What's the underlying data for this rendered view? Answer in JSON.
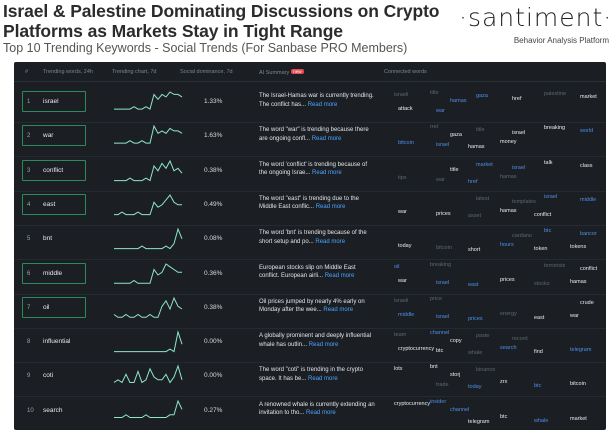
{
  "header": {
    "headline": "Israel & Palestine Dominating Discussions on Crypto Platforms as Markets Stay in Tight Range",
    "subtitle": "Top 10 Trending Keywords - Social Trends (For Sanbase PRO Members)",
    "logo_text": "·santiment·",
    "logo_tagline": "Behavior Analysis Platform"
  },
  "table": {
    "columns": {
      "index": "#",
      "keywords": "Trending words, 24h",
      "chart": "Trending chart, 7d",
      "dominance": "Social dominance, 7d",
      "ai": "AI Summary",
      "ai_badge": "new",
      "connected": "Connected words"
    },
    "read_more": "Read more",
    "rows": [
      {
        "idx": "1",
        "keyword": "israel",
        "dominance": "1.33%",
        "highlighted": true,
        "summary": "The Israel-Hamas war is currently trending. The conflict has...",
        "trend": [
          2,
          2,
          2,
          2,
          2,
          3,
          2,
          2,
          3,
          2,
          8,
          6,
          8,
          7,
          9,
          8,
          8,
          7
        ],
        "words": [
          {
            "t": "israeli",
            "c": "g"
          },
          {
            "t": "title",
            "c": "g"
          },
          {
            "t": "hamas",
            "c": "b"
          },
          {
            "t": "gaza",
            "c": "b"
          },
          {
            "t": "href",
            "c": "w"
          },
          {
            "t": "palestine",
            "c": "g"
          },
          {
            "t": "market",
            "c": "w"
          },
          {
            "t": "attack",
            "c": "w"
          },
          {
            "t": "war",
            "c": "b"
          }
        ]
      },
      {
        "idx": "2",
        "keyword": "war",
        "dominance": "1.63%",
        "highlighted": true,
        "summary": "The word \"war\" is trending because there are ongoing confl...",
        "trend": [
          2,
          2,
          2,
          2,
          3,
          2,
          2,
          3,
          2,
          2,
          9,
          6,
          7,
          6,
          8,
          7,
          7,
          6
        ],
        "words": [
          {
            "t": "rrel",
            "c": "g"
          },
          {
            "t": "gaza",
            "c": "w"
          },
          {
            "t": "title",
            "c": "g"
          },
          {
            "t": "israel",
            "c": "w"
          },
          {
            "t": "breaking",
            "c": "w"
          },
          {
            "t": "world",
            "c": "b"
          },
          {
            "t": "bitcoin",
            "c": "b"
          },
          {
            "t": "israel",
            "c": "b"
          },
          {
            "t": "hamas",
            "c": "w"
          },
          {
            "t": "money",
            "c": "w"
          }
        ]
      },
      {
        "idx": "3",
        "keyword": "conflict",
        "dominance": "0.38%",
        "highlighted": true,
        "summary": "The word 'conflict' is trending because of the ongoing Israe...",
        "trend": [
          1,
          1,
          1,
          1,
          2,
          1,
          1,
          1,
          2,
          1,
          7,
          5,
          8,
          6,
          9,
          5,
          6,
          4
        ],
        "words": [
          {
            "t": "title",
            "c": "w"
          },
          {
            "t": "market",
            "c": "b"
          },
          {
            "t": "israel",
            "c": "b"
          },
          {
            "t": "talk",
            "c": "w"
          },
          {
            "t": "class",
            "c": "w"
          },
          {
            "t": "tips",
            "c": "g"
          },
          {
            "t": "war",
            "c": "g"
          },
          {
            "t": "href",
            "c": "b"
          },
          {
            "t": "hamas",
            "c": "g"
          }
        ]
      },
      {
        "idx": "4",
        "keyword": "east",
        "dominance": "0.49%",
        "highlighted": true,
        "summary": "The word \"east\" is trending due to the Middle East conflic...",
        "trend": [
          1,
          1,
          2,
          1,
          1,
          1,
          2,
          1,
          1,
          1,
          6,
          4,
          5,
          7,
          9,
          6,
          5,
          5
        ],
        "words": [
          {
            "t": "latest",
            "c": "g"
          },
          {
            "t": "templates",
            "c": "g"
          },
          {
            "t": "israel",
            "c": "b"
          },
          {
            "t": "middle",
            "c": "b"
          },
          {
            "t": "war",
            "c": "w"
          },
          {
            "t": "prices",
            "c": "w"
          },
          {
            "t": "asset",
            "c": "g"
          },
          {
            "t": "hamas",
            "c": "w"
          },
          {
            "t": "conflict",
            "c": "w"
          }
        ]
      },
      {
        "idx": "5",
        "keyword": "bnt",
        "dominance": "0.08%",
        "highlighted": false,
        "summary": "The word 'bnt' is trending because of the short setup and po...",
        "trend": [
          1,
          1,
          1,
          1,
          1,
          1,
          1,
          2,
          1,
          1,
          1,
          1,
          1,
          2,
          1,
          3,
          9,
          5
        ],
        "words": [
          {
            "t": "cardano",
            "c": "g"
          },
          {
            "t": "btc",
            "c": "b"
          },
          {
            "t": "bancor",
            "c": "b"
          },
          {
            "t": "today",
            "c": "w"
          },
          {
            "t": "bitcoin",
            "c": "g"
          },
          {
            "t": "short",
            "c": "w"
          },
          {
            "t": "hours",
            "c": "b"
          },
          {
            "t": "token",
            "c": "w"
          },
          {
            "t": "tokens",
            "c": "w"
          }
        ]
      },
      {
        "idx": "6",
        "keyword": "middle",
        "dominance": "0.36%",
        "highlighted": true,
        "summary": "European stocks slip on Middle East conflict. European airli...",
        "trend": [
          1,
          1,
          1,
          1,
          1,
          2,
          1,
          1,
          1,
          1,
          6,
          4,
          5,
          8,
          7,
          6,
          5,
          5
        ],
        "words": [
          {
            "t": "terrorists",
            "c": "g"
          },
          {
            "t": "conflict",
            "c": "w"
          },
          {
            "t": "war",
            "c": "w"
          },
          {
            "t": "israel",
            "c": "b"
          },
          {
            "t": "east",
            "c": "b"
          },
          {
            "t": "prices",
            "c": "w"
          },
          {
            "t": "stocks",
            "c": "g"
          },
          {
            "t": "hamas",
            "c": "w"
          },
          {
            "t": "oil",
            "c": "b"
          },
          {
            "t": "breaking",
            "c": "g"
          }
        ]
      },
      {
        "idx": "7",
        "keyword": "oil",
        "dominance": "0.38%",
        "highlighted": true,
        "summary": "Oil prices jumped by nearly 4% early on Monday after the wee...",
        "trend": [
          2,
          1,
          1,
          2,
          1,
          1,
          2,
          1,
          1,
          2,
          1,
          1,
          5,
          7,
          4,
          8,
          5,
          4
        ],
        "words": [
          {
            "t": "crude",
            "c": "w"
          },
          {
            "t": "middle",
            "c": "b"
          },
          {
            "t": "israel",
            "c": "b"
          },
          {
            "t": "prices",
            "c": "b"
          },
          {
            "t": "energy",
            "c": "g"
          },
          {
            "t": "east",
            "c": "w"
          },
          {
            "t": "war",
            "c": "w"
          },
          {
            "t": "israeli",
            "c": "g"
          },
          {
            "t": "price",
            "c": "g"
          }
        ]
      },
      {
        "idx": "8",
        "keyword": "influential",
        "dominance": "0.00%",
        "highlighted": false,
        "summary": "A globally prominent and deeply influential whale has outlin...",
        "trend": [
          1,
          1,
          1,
          1,
          1,
          1,
          1,
          1,
          1,
          1,
          1,
          1,
          1,
          1,
          2,
          1,
          9,
          4
        ],
        "words": [
          {
            "t": "cryptocurrency",
            "c": "w"
          },
          {
            "t": "btc",
            "c": "w"
          },
          {
            "t": "whale",
            "c": "g"
          },
          {
            "t": "search",
            "c": "b"
          },
          {
            "t": "find",
            "c": "w"
          },
          {
            "t": "telegram",
            "c": "b"
          },
          {
            "t": "team",
            "c": "g"
          },
          {
            "t": "channel",
            "c": "b"
          },
          {
            "t": "copy",
            "c": "w"
          },
          {
            "t": "paste",
            "c": "g"
          },
          {
            "t": "record",
            "c": "g"
          }
        ]
      },
      {
        "idx": "9",
        "keyword": "coti",
        "dominance": "0.00%",
        "highlighted": false,
        "summary": "The word \"coti\" is trending in the crypto space. It has be...",
        "trend": [
          2,
          3,
          2,
          5,
          2,
          2,
          6,
          2,
          3,
          7,
          4,
          3,
          3,
          5,
          2,
          4,
          8,
          3
        ],
        "words": [
          {
            "t": "trade",
            "c": "g"
          },
          {
            "t": "today",
            "c": "b"
          },
          {
            "t": "zrx",
            "c": "w"
          },
          {
            "t": "btc",
            "c": "b"
          },
          {
            "t": "bitcoin",
            "c": "w"
          },
          {
            "t": "lotx",
            "c": "w"
          },
          {
            "t": "bnt",
            "c": "w"
          },
          {
            "t": "storj",
            "c": "w"
          },
          {
            "t": "binance",
            "c": "g"
          }
        ]
      },
      {
        "idx": "10",
        "keyword": "search",
        "dominance": "0.27%",
        "highlighted": false,
        "summary": "A renowned whale is currently extending an invitation to tho...",
        "trend": [
          2,
          2,
          2,
          3,
          2,
          2,
          2,
          2,
          3,
          2,
          2,
          2,
          2,
          2,
          3,
          3,
          8,
          5
        ],
        "words": [
          {
            "t": "telegram",
            "c": "w"
          },
          {
            "t": "btc",
            "c": "w"
          },
          {
            "t": "whale",
            "c": "b"
          },
          {
            "t": "market",
            "c": "w"
          },
          {
            "t": "cryptocurrency",
            "c": "w"
          },
          {
            "t": "insider",
            "c": "b"
          },
          {
            "t": "channel",
            "c": "b"
          }
        ]
      }
    ]
  }
}
